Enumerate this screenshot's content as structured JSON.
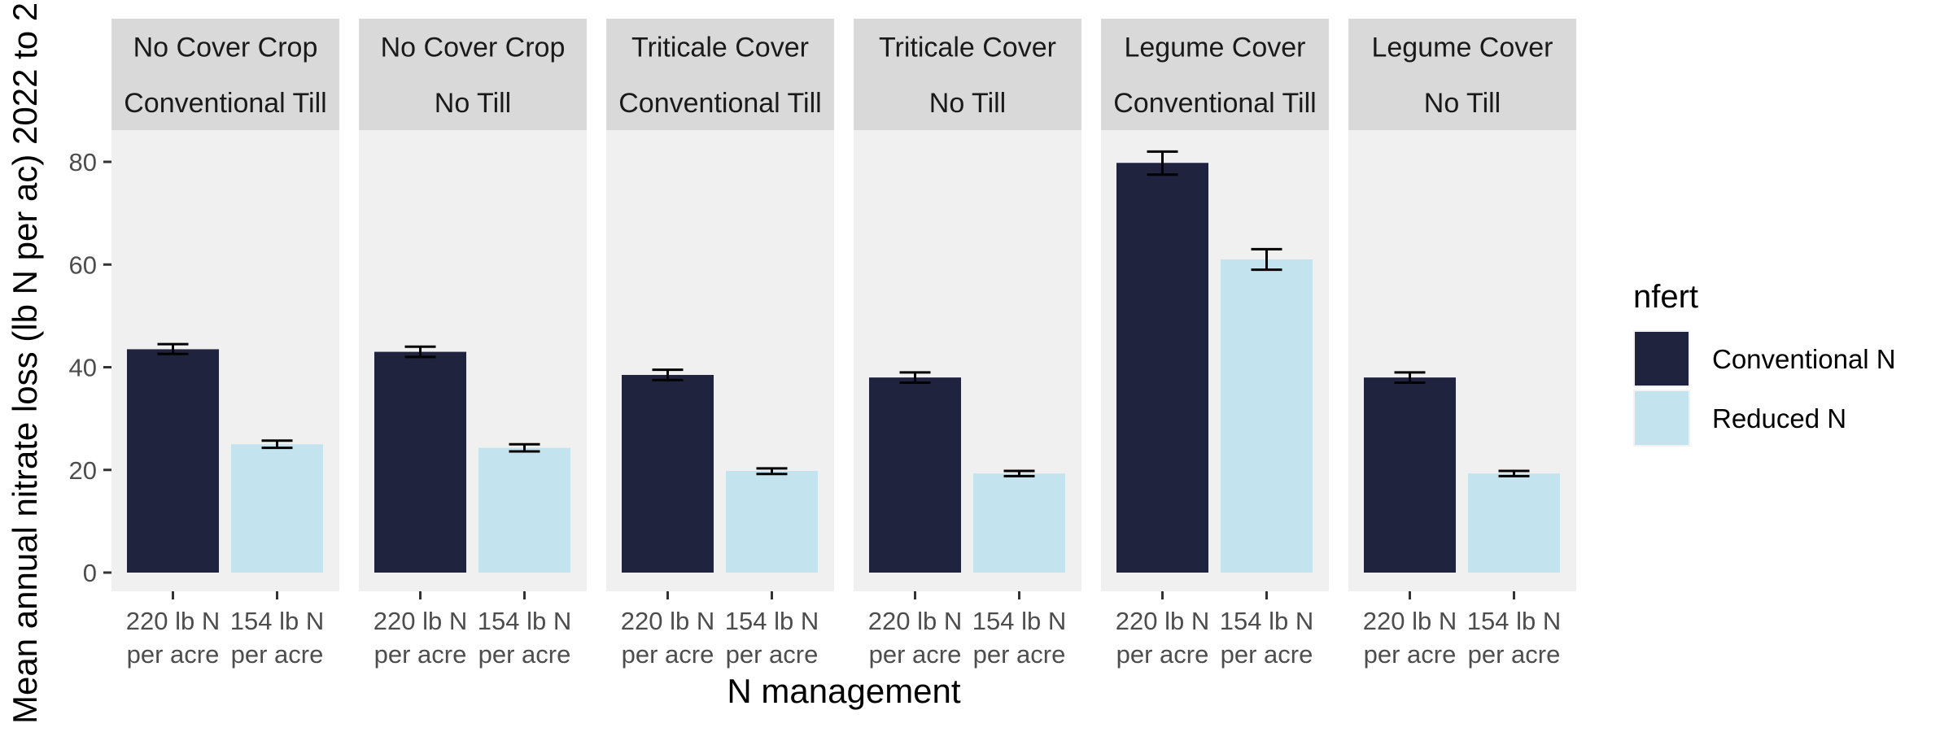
{
  "chart_data": {
    "type": "bar",
    "ylabel": "Mean annual nitrate loss (lb N per ac) 2022 to 2",
    "xlabel": "N management",
    "ylim": [
      0,
      86
    ],
    "y_ticks": [
      0,
      20,
      40,
      60,
      80
    ],
    "y_tick_labels": [
      "0",
      "20",
      "40",
      "60",
      "80"
    ],
    "grid": false,
    "categories": [
      [
        "220 lb N",
        "per acre"
      ],
      [
        "154 lb N",
        "per acre"
      ]
    ],
    "legend": {
      "title": "nfert",
      "position": "right",
      "entries": [
        {
          "name": "Conventional N",
          "color": "#20233d"
        },
        {
          "name": "Reduced N",
          "color": "#c3e4ef"
        }
      ]
    },
    "facets": [
      {
        "cover": "No Cover Crop",
        "tillage": "Conventional Till",
        "values": [
          43.5,
          25.0
        ],
        "errors": [
          [
            42.6,
            44.5
          ],
          [
            24.3,
            25.7
          ]
        ]
      },
      {
        "cover": "No Cover Crop",
        "tillage": "No Till",
        "values": [
          43.0,
          24.3
        ],
        "errors": [
          [
            42.0,
            44.0
          ],
          [
            23.6,
            25.0
          ]
        ]
      },
      {
        "cover": "Triticale Cover",
        "tillage": "Conventional Till",
        "values": [
          38.5,
          19.8
        ],
        "errors": [
          [
            37.5,
            39.5
          ],
          [
            19.2,
            20.3
          ]
        ]
      },
      {
        "cover": "Triticale Cover",
        "tillage": "No Till",
        "values": [
          38.0,
          19.3
        ],
        "errors": [
          [
            37.0,
            39.0
          ],
          [
            18.8,
            19.8
          ]
        ]
      },
      {
        "cover": "Legume Cover",
        "tillage": "Conventional Till",
        "values": [
          79.8,
          61.0
        ],
        "errors": [
          [
            77.5,
            82.0
          ],
          [
            59.0,
            63.0
          ]
        ]
      },
      {
        "cover": "Legume Cover",
        "tillage": "No Till",
        "values": [
          38.0,
          19.3
        ],
        "errors": [
          [
            37.0,
            39.0
          ],
          [
            18.8,
            19.8
          ]
        ]
      }
    ]
  },
  "colors": {
    "panel_bg": "#f0f0f0",
    "strip_bg": "#d9d9d9",
    "error_bar": "#000000"
  }
}
